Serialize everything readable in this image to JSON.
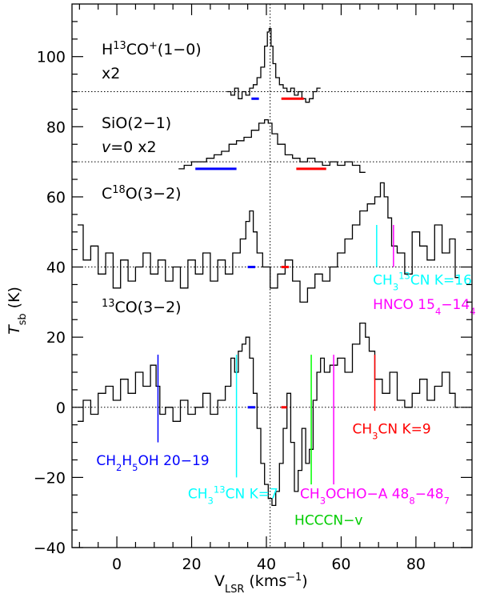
{
  "chart_data": {
    "type": "line",
    "xlabel": "V",
    "xlabel_sub": "LSR",
    "xlabel_unit_pre": " (kms",
    "xlabel_unit_sup": "−1",
    "xlabel_unit_post": ")",
    "ylabel": "T",
    "ylabel_sub": "sb",
    "ylabel_unit": " (K)",
    "xlim": [
      -12,
      95
    ],
    "ylim": [
      -40,
      115
    ],
    "xticks": [
      0,
      20,
      40,
      60,
      80
    ],
    "yticks": [
      -40,
      -20,
      0,
      20,
      40,
      60,
      80,
      100
    ],
    "vline_x": 41,
    "baselines": [
      90,
      70,
      40,
      0
    ],
    "series": [
      {
        "id": "h13co",
        "label_parts": [
          [
            "H",
            ""
          ],
          [
            "13",
            "sup"
          ],
          [
            "CO",
            ""
          ],
          [
            "+",
            "sup"
          ],
          [
            "(1−0)",
            ""
          ]
        ],
        "label_line2": "x2",
        "x": [
          30,
          31,
          32,
          33,
          34,
          35,
          36,
          37,
          38,
          39,
          40,
          40.5,
          41,
          41.5,
          42,
          43,
          44,
          45,
          46,
          47,
          48,
          49,
          50,
          51,
          52,
          53,
          54
        ],
        "y": [
          90,
          89,
          91,
          88,
          90,
          89,
          91,
          92,
          94,
          97,
          103,
          107,
          108,
          103,
          98,
          94,
          92,
          91,
          90,
          91,
          89,
          90,
          88,
          87,
          88,
          90,
          91
        ],
        "lines": [
          {
            "color": "#0000ff",
            "x0": 36,
            "x1": 38,
            "y": 88
          },
          {
            "color": "#ff0000",
            "x0": 44,
            "x1": 50,
            "y": 88
          }
        ]
      },
      {
        "id": "sio",
        "label_parts": [
          [
            "SiO(2−1)",
            ""
          ]
        ],
        "label_line2_parts": [
          [
            "v",
            "it"
          ],
          [
            "=0  x2",
            ""
          ]
        ],
        "x": [
          17,
          19,
          21,
          23,
          25,
          27,
          29,
          31,
          33,
          35,
          37,
          39,
          40,
          41,
          42,
          44,
          46,
          48,
          50,
          52,
          54,
          56,
          58,
          60,
          62,
          64,
          66
        ],
        "y": [
          68,
          69,
          70,
          70,
          71,
          72,
          73,
          75,
          76,
          77,
          79,
          81,
          82,
          81,
          78,
          75,
          72,
          71,
          70,
          71,
          70,
          69,
          70,
          69,
          70,
          69,
          67
        ],
        "lines": [
          {
            "color": "#0000ff",
            "x0": 21,
            "x1": 32,
            "y": 68
          },
          {
            "color": "#ff0000",
            "x0": 48,
            "x1": 56,
            "y": 68
          }
        ]
      },
      {
        "id": "c18o",
        "label_parts": [
          [
            "C",
            ""
          ],
          [
            "18",
            "sup"
          ],
          [
            "O(3−2)",
            ""
          ]
        ],
        "x": [
          -10,
          -8,
          -6,
          -4,
          -2,
          0,
          2,
          4,
          6,
          8,
          10,
          12,
          14,
          16,
          18,
          20,
          22,
          24,
          26,
          28,
          30,
          32,
          34,
          35,
          36,
          37,
          38,
          40,
          42,
          44,
          46,
          48,
          50,
          52,
          54,
          56,
          58,
          60,
          62,
          64,
          66,
          68,
          70,
          71,
          72,
          73,
          74,
          76,
          78,
          80,
          82,
          84,
          86,
          88,
          90,
          91
        ],
        "y": [
          52,
          42,
          46,
          38,
          44,
          34,
          42,
          36,
          40,
          44,
          38,
          42,
          36,
          40,
          34,
          42,
          38,
          44,
          36,
          42,
          38,
          44,
          48,
          53,
          56,
          50,
          44,
          40,
          34,
          38,
          42,
          36,
          30,
          34,
          38,
          36,
          40,
          44,
          48,
          52,
          56,
          58,
          60,
          64,
          60,
          54,
          46,
          44,
          38,
          50,
          46,
          42,
          52,
          44,
          48,
          37
        ],
        "lines": [
          {
            "color": "#0000ff",
            "x0": 35,
            "x1": 37,
            "y": 40
          },
          {
            "color": "#ff0000",
            "x0": 44,
            "x1": 46,
            "y": 40
          }
        ],
        "markers": [
          {
            "color": "#00ffff",
            "x": 69.5,
            "y0": 40,
            "y1": 52
          },
          {
            "color": "#ff00ff",
            "x": 74,
            "y0": 40,
            "y1": 52
          }
        ]
      },
      {
        "id": "13co",
        "label_parts": [
          [
            "13",
            "sup"
          ],
          [
            "CO(3−2)",
            ""
          ]
        ],
        "x": [
          -10,
          -8,
          -6,
          -4,
          -2,
          0,
          2,
          4,
          6,
          8,
          10,
          11,
          12,
          14,
          16,
          18,
          20,
          22,
          24,
          26,
          28,
          30,
          31,
          32,
          33,
          34,
          35,
          36,
          37,
          38,
          39,
          40,
          41,
          42,
          43,
          44,
          45,
          46,
          47,
          48,
          49,
          50,
          51,
          52,
          53,
          54,
          55,
          56,
          58,
          60,
          62,
          64,
          66,
          67,
          68,
          70,
          72,
          74,
          76,
          78,
          80,
          82,
          84,
          86,
          88,
          90,
          91
        ],
        "y": [
          -4,
          2,
          -2,
          4,
          6,
          2,
          8,
          4,
          10,
          6,
          12,
          6,
          -2,
          0,
          -4,
          2,
          -2,
          0,
          4,
          -2,
          2,
          6,
          14,
          10,
          16,
          18,
          20,
          14,
          4,
          -6,
          -16,
          -22,
          -26,
          -28,
          -24,
          -16,
          -6,
          4,
          -10,
          -24,
          -18,
          -6,
          -16,
          -12,
          2,
          10,
          14,
          10,
          12,
          14,
          10,
          18,
          24,
          20,
          16,
          8,
          4,
          10,
          2,
          0,
          4,
          8,
          2,
          6,
          10,
          4,
          0
        ],
        "lines": [
          {
            "color": "#0000ff",
            "x0": 35,
            "x1": 37,
            "y": 0
          },
          {
            "color": "#ff0000",
            "x0": 44,
            "x1": 45.5,
            "y": 0
          }
        ],
        "markers": [
          {
            "color": "#0000ff",
            "x": 11,
            "y0": -10,
            "y1": 15
          },
          {
            "color": "#00ffff",
            "x": 32,
            "y0": -20,
            "y1": 15
          },
          {
            "color": "#00ff00",
            "x": 52,
            "y0": -22,
            "y1": 15
          },
          {
            "color": "#ff00ff",
            "x": 58,
            "y0": -22,
            "y1": 15
          },
          {
            "color": "#ff0000",
            "x": 69,
            "y0": -1,
            "y1": 15
          }
        ]
      }
    ],
    "annotations": [
      {
        "id": "ann-ch3-13cn-k16",
        "color": "#00ffff",
        "x": 68.5,
        "y": 35,
        "parts": [
          [
            "CH",
            ""
          ],
          [
            "3",
            "sub"
          ],
          [
            "",
            ""
          ],
          [
            "13",
            "sup"
          ],
          [
            "CN  K=16",
            ""
          ]
        ]
      },
      {
        "id": "ann-hnco",
        "color": "#ff00ff",
        "x": 68.5,
        "y": 28,
        "parts": [
          [
            "HNCO  15",
            ""
          ],
          [
            "4",
            "sub"
          ],
          [
            "−14",
            ""
          ],
          [
            "4",
            "sub"
          ]
        ]
      },
      {
        "id": "ann-ch2h5oh",
        "color": "#0000ff",
        "x": -5.5,
        "y": -16.5,
        "parts": [
          [
            "CH",
            ""
          ],
          [
            "2",
            "sub"
          ],
          [
            "H",
            ""
          ],
          [
            "5",
            "sub"
          ],
          [
            "OH  20−19",
            ""
          ]
        ]
      },
      {
        "id": "ann-ch3-13cn-k7",
        "color": "#00ffff",
        "x": 19,
        "y": -26,
        "parts": [
          [
            "CH",
            ""
          ],
          [
            "3",
            "sub"
          ],
          [
            "",
            ""
          ],
          [
            "13",
            "sup"
          ],
          [
            "CN  K=7",
            ""
          ]
        ]
      },
      {
        "id": "ann-ch3ocho",
        "color": "#ff00ff",
        "x": 49,
        "y": -26,
        "parts": [
          [
            "CH",
            ""
          ],
          [
            "3",
            "sub"
          ],
          [
            "OCHO−A  48",
            ""
          ],
          [
            "8",
            "sub"
          ],
          [
            "−48",
            ""
          ],
          [
            "7",
            "sub"
          ]
        ]
      },
      {
        "id": "ann-hcccn",
        "color": "#00cc00",
        "x": 47.5,
        "y": -33.5,
        "parts": [
          [
            "HCCCN−v",
            ""
          ]
        ]
      },
      {
        "id": "ann-ch3cn-k9",
        "color": "#ff0000",
        "x": 63,
        "y": -7.5,
        "parts": [
          [
            "CH",
            ""
          ],
          [
            "3",
            "sub"
          ],
          [
            "CN  K=9",
            ""
          ]
        ]
      }
    ]
  }
}
